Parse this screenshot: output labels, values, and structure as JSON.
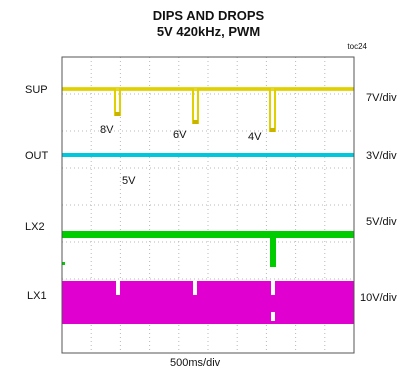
{
  "chart_data": {
    "type": "oscilloscope",
    "title": "DIPS AND DROPS",
    "subtitle": "5V 420kHz, PWM",
    "figure_id": "toc24",
    "time_scale": "500ms/div",
    "grid": true,
    "divisions": {
      "x": 10,
      "y": 8
    },
    "channels": [
      {
        "name": "SUP",
        "scale": "7V/div",
        "color": "#e0d000"
      },
      {
        "name": "OUT",
        "scale": "3V/div",
        "color": "#00c8dc"
      },
      {
        "name": "LX2",
        "scale": "5V/div",
        "color": "#00cc00"
      },
      {
        "name": "LX1",
        "scale": "10V/div",
        "color": "#e000d0"
      }
    ],
    "annotations": [
      "8V",
      "6V",
      "4V",
      "5V"
    ]
  }
}
